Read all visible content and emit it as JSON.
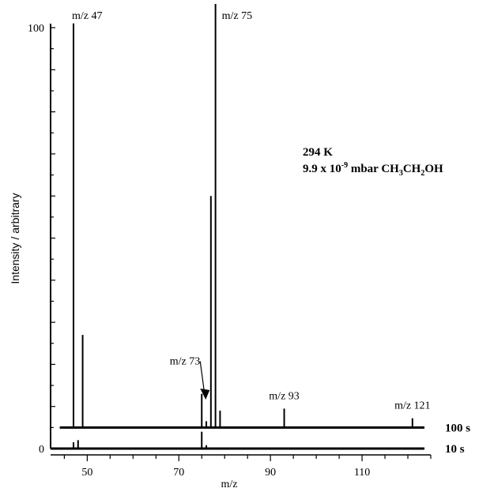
{
  "chart_data": {
    "type": "line",
    "title": "",
    "xlabel": "m/z",
    "ylabel": "Intensity / arbitrary",
    "xlim": [
      42,
      125
    ],
    "ylim": [
      0,
      100
    ],
    "x_ticks": [
      50,
      70,
      90,
      110
    ],
    "y_ticks": [
      0,
      100
    ],
    "conditions": {
      "temperature": "294 K",
      "pressure_main": "9.9 x 10",
      "pressure_exp": "-9",
      "pressure_unit": " mbar CH",
      "formula_sub1": "3",
      "formula_mid": "CH",
      "formula_sub2": "2",
      "formula_end": "OH"
    },
    "series": [
      {
        "name": "10 s",
        "offset": 0,
        "peaks": [
          {
            "mz": 47,
            "intensity": 1.5
          },
          {
            "mz": 48,
            "intensity": 2.0
          },
          {
            "mz": 75,
            "intensity": 4.0
          },
          {
            "mz": 76,
            "intensity": 0.8
          }
        ]
      },
      {
        "name": "100 s",
        "offset": 5,
        "peaks": [
          {
            "mz": 47,
            "intensity": 96
          },
          {
            "mz": 49,
            "intensity": 22
          },
          {
            "mz": 75,
            "intensity": 8
          },
          {
            "mz": 76,
            "intensity": 1.5
          },
          {
            "mz": 77,
            "intensity": 55
          },
          {
            "mz": 78,
            "intensity": 102
          },
          {
            "mz": 79,
            "intensity": 4
          },
          {
            "mz": 93,
            "intensity": 4.5
          },
          {
            "mz": 121,
            "intensity": 2.2
          }
        ]
      }
    ],
    "annotations": [
      {
        "label": "m/z 47",
        "mz": 47
      },
      {
        "label": "m/z 75",
        "mz": 78
      },
      {
        "label": "m/z 73",
        "mz": 75
      },
      {
        "label": "m/z 93",
        "mz": 93
      },
      {
        "label": "m/z 121",
        "mz": 121
      }
    ]
  }
}
